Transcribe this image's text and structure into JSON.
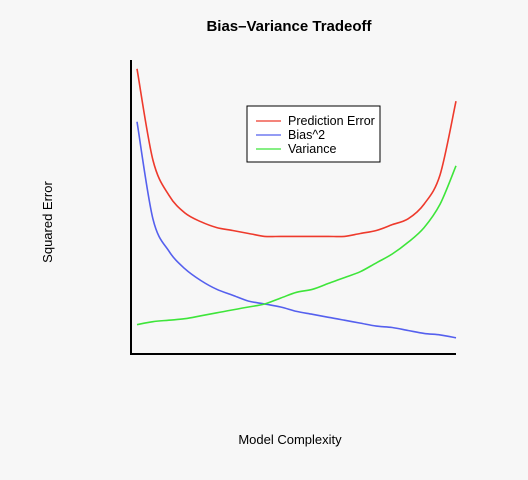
{
  "chart_data": {
    "type": "line",
    "title": "Bias–Variance Tradeoff",
    "xlabel": "Model Complexity",
    "ylabel": "Squared Error",
    "xlim": [
      0,
      1
    ],
    "ylim": [
      0,
      1
    ],
    "x": [
      0.0,
      0.05,
      0.1,
      0.15,
      0.2,
      0.25,
      0.3,
      0.35,
      0.4,
      0.45,
      0.5,
      0.55,
      0.6,
      0.65,
      0.7,
      0.75,
      0.8,
      0.85,
      0.9,
      0.95,
      1.0
    ],
    "series": [
      {
        "name": "Prediction Error",
        "color": "#ee3a2c",
        "values": [
          0.97,
          0.66,
          0.54,
          0.48,
          0.45,
          0.43,
          0.42,
          0.41,
          0.4,
          0.4,
          0.4,
          0.4,
          0.4,
          0.4,
          0.41,
          0.42,
          0.44,
          0.46,
          0.51,
          0.61,
          0.86
        ]
      },
      {
        "name": "Bias^2",
        "color": "#5560ee",
        "values": [
          0.79,
          0.46,
          0.35,
          0.29,
          0.25,
          0.22,
          0.2,
          0.18,
          0.17,
          0.16,
          0.145,
          0.135,
          0.125,
          0.115,
          0.105,
          0.095,
          0.09,
          0.08,
          0.07,
          0.065,
          0.055
        ]
      },
      {
        "name": "Variance",
        "color": "#3ee53a",
        "values": [
          0.1,
          0.11,
          0.115,
          0.12,
          0.13,
          0.14,
          0.15,
          0.16,
          0.17,
          0.19,
          0.21,
          0.22,
          0.24,
          0.26,
          0.28,
          0.31,
          0.34,
          0.38,
          0.43,
          0.51,
          0.64
        ]
      }
    ],
    "legend": {
      "position": "top-center",
      "entries": [
        "Prediction Error",
        "Bias^2",
        "Variance"
      ]
    },
    "grid": false
  }
}
